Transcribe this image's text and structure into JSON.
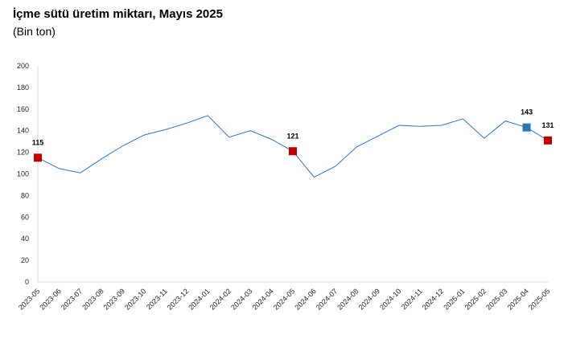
{
  "chart_data": {
    "type": "line",
    "title": "İçme sütü üretim miktarı, Mayıs 2025",
    "subtitle": "(Bin ton)",
    "categories": [
      "2023-05",
      "2023-06",
      "2023-07",
      "2023-08",
      "2023-09",
      "2023-10",
      "2023-11",
      "2023-12",
      "2024-01",
      "2024-02",
      "2024-03",
      "2024-04",
      "2024-05",
      "2024-06",
      "2024-07",
      "2024-08",
      "2024-09",
      "2024-10",
      "2024-11",
      "2024-12",
      "2025-01",
      "2025-02",
      "2025-03",
      "2025-04",
      "2025-05"
    ],
    "values": [
      115,
      105,
      101,
      114,
      126,
      136,
      141,
      147,
      154,
      134,
      140,
      132,
      121,
      97,
      107,
      125,
      135,
      145,
      144,
      145,
      151,
      133,
      149,
      143,
      131
    ],
    "ylim": [
      0,
      200
    ],
    "yticks": [
      0,
      20,
      40,
      60,
      80,
      100,
      120,
      140,
      160,
      180,
      200
    ],
    "highlighted_points": [
      {
        "category": "2023-05",
        "value": 115,
        "label": "115",
        "color": "#c00000"
      },
      {
        "category": "2024-05",
        "value": 121,
        "label": "121",
        "color": "#c00000"
      },
      {
        "category": "2025-04",
        "value": 143,
        "label": "143",
        "color": "#2e75b6"
      },
      {
        "category": "2025-05",
        "value": 131,
        "label": "131",
        "color": "#c00000"
      }
    ],
    "line_color": "#2e75b6",
    "grid": false,
    "legend": "none"
  }
}
